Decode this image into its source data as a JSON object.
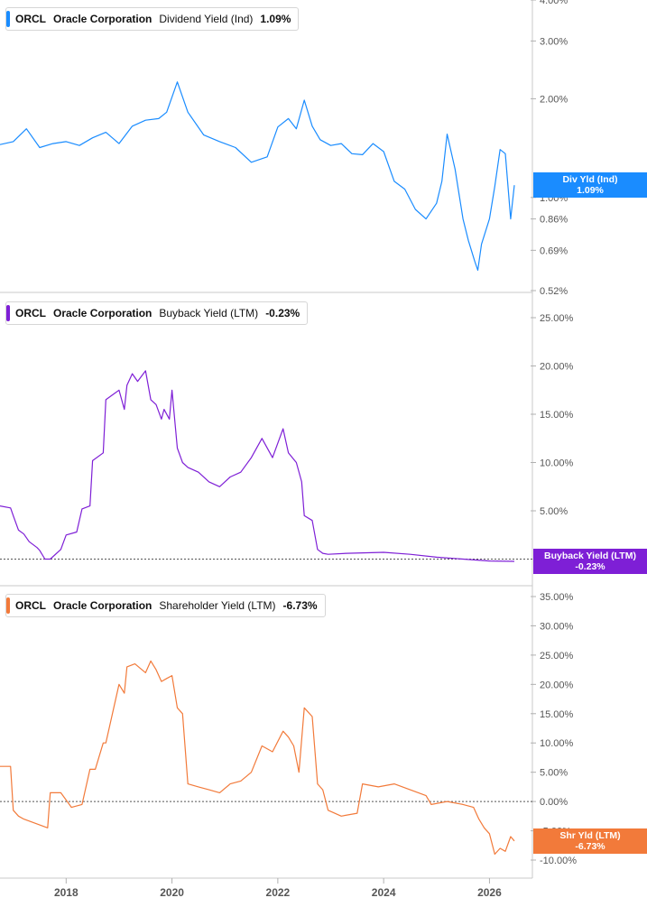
{
  "panels": [
    {
      "ticker": "ORCL",
      "company": "Oracle Corporation",
      "metric": "Dividend Yield (Ind)",
      "value": "1.09%",
      "color": "#1a8cff",
      "tag_label": "Div Yld (Ind)",
      "tag_value": "1.09%"
    },
    {
      "ticker": "ORCL",
      "company": "Oracle Corporation",
      "metric": "Buyback Yield (LTM)",
      "value": "-0.23%",
      "color": "#7e1fd6",
      "tag_label": "Buyback Yield (LTM)",
      "tag_value": "-0.23%"
    },
    {
      "ticker": "ORCL",
      "company": "Oracle Corporation",
      "metric": "Shareholder Yield (LTM)",
      "value": "-6.73%",
      "color": "#f27a3a",
      "tag_label": "Shr Yld (LTM)",
      "tag_value": "-6.73%"
    }
  ],
  "chart_data": [
    {
      "type": "line",
      "title": "ORCL Oracle Corporation Dividend Yield (Ind) 1.09%",
      "scale": "log",
      "ylim": [
        0.52,
        4.0
      ],
      "y_ticks": [
        "4.00%",
        "3.00%",
        "2.00%",
        "1.00%",
        "0.86%",
        "0.69%",
        "0.52%"
      ],
      "y_tick_values": [
        4.0,
        3.0,
        2.0,
        1.0,
        0.86,
        0.69,
        0.52
      ],
      "x_ticks": [
        "2018",
        "2020",
        "2022",
        "2024",
        "2026"
      ],
      "last_value": 1.09,
      "series": [
        {
          "x": [
            2016.75,
            2017.0,
            2017.25,
            2017.5,
            2017.75,
            2018.0,
            2018.25,
            2018.5,
            2018.75,
            2019.0,
            2019.25,
            2019.5,
            2019.75,
            2019.9,
            2020.1,
            2020.3,
            2020.6,
            2020.9,
            2021.2,
            2021.5,
            2021.8,
            2022.0,
            2022.2,
            2022.35,
            2022.5,
            2022.65,
            2022.8,
            2023.0,
            2023.2,
            2023.4,
            2023.6,
            2023.8,
            2024.0,
            2024.2,
            2024.4,
            2024.6,
            2024.8,
            2025.0,
            2025.1,
            2025.2,
            2025.35,
            2025.5,
            2025.6,
            2025.72,
            2025.78,
            2025.85,
            2026.0,
            2026.1,
            2026.2,
            2026.3,
            2026.4,
            2026.47
          ],
          "y": [
            1.45,
            1.48,
            1.62,
            1.42,
            1.46,
            1.48,
            1.44,
            1.52,
            1.58,
            1.46,
            1.65,
            1.72,
            1.74,
            1.82,
            2.25,
            1.82,
            1.55,
            1.48,
            1.42,
            1.28,
            1.33,
            1.64,
            1.74,
            1.62,
            1.98,
            1.65,
            1.5,
            1.44,
            1.46,
            1.36,
            1.35,
            1.46,
            1.38,
            1.12,
            1.06,
            0.92,
            0.86,
            0.96,
            1.12,
            1.56,
            1.22,
            0.86,
            0.74,
            0.64,
            0.6,
            0.72,
            0.86,
            1.08,
            1.4,
            1.36,
            0.86,
            1.09
          ]
        }
      ]
    },
    {
      "type": "line",
      "title": "ORCL Oracle Corporation Buyback Yield (LTM) -0.23%",
      "ylim": [
        -1.0,
        27.0
      ],
      "y_ticks": [
        "25.00%",
        "20.00%",
        "15.00%",
        "10.00%",
        "5.00%"
      ],
      "y_tick_values": [
        25,
        20,
        15,
        10,
        5
      ],
      "x_ticks": [
        "2018",
        "2020",
        "2022",
        "2024",
        "2026"
      ],
      "reference_line": 0,
      "last_value": -0.23,
      "series": [
        {
          "x": [
            2016.75,
            2016.95,
            2017.0,
            2017.1,
            2017.2,
            2017.3,
            2017.45,
            2017.5,
            2017.6,
            2017.7,
            2017.9,
            2018.0,
            2018.2,
            2018.3,
            2018.45,
            2018.5,
            2018.7,
            2018.75,
            2019.0,
            2019.1,
            2019.15,
            2019.25,
            2019.35,
            2019.5,
            2019.6,
            2019.7,
            2019.8,
            2019.85,
            2019.95,
            2020.0,
            2020.1,
            2020.2,
            2020.3,
            2020.5,
            2020.7,
            2020.9,
            2021.1,
            2021.3,
            2021.5,
            2021.7,
            2021.9,
            2022.1,
            2022.2,
            2022.35,
            2022.45,
            2022.5,
            2022.65,
            2022.75,
            2022.85,
            2022.95,
            2023.3,
            2024.0,
            2024.5,
            2025.0,
            2025.5,
            2026.0,
            2026.47
          ],
          "y": [
            5.5,
            5.3,
            4.5,
            3.0,
            2.6,
            1.8,
            1.2,
            0.9,
            0.0,
            0.0,
            1.0,
            2.5,
            2.8,
            5.2,
            5.5,
            10.2,
            11.0,
            16.5,
            17.5,
            15.5,
            18.0,
            19.2,
            18.4,
            19.5,
            16.5,
            16.0,
            14.5,
            15.5,
            14.5,
            17.5,
            11.5,
            10.0,
            9.5,
            9.0,
            8.0,
            7.5,
            8.5,
            9.0,
            10.5,
            12.5,
            10.5,
            13.5,
            11.0,
            10.0,
            8.0,
            4.5,
            4.0,
            1.0,
            0.6,
            0.5,
            0.6,
            0.7,
            0.5,
            0.2,
            0.0,
            -0.2,
            -0.23
          ]
        }
      ]
    },
    {
      "type": "line",
      "title": "ORCL Oracle Corporation Shareholder Yield (LTM) -6.73%",
      "ylim": [
        -11.0,
        37.0
      ],
      "y_ticks": [
        "35.00%",
        "30.00%",
        "25.00%",
        "20.00%",
        "15.00%",
        "10.00%",
        "5.00%",
        "0.00%",
        "-5.00%",
        "-10.00%"
      ],
      "y_tick_values": [
        35,
        30,
        25,
        20,
        15,
        10,
        5,
        0,
        -5,
        -10
      ],
      "x_ticks": [
        "2018",
        "2020",
        "2022",
        "2024",
        "2026"
      ],
      "reference_line": 0,
      "last_value": -6.73,
      "series": [
        {
          "x": [
            2016.75,
            2016.95,
            2017.0,
            2017.1,
            2017.2,
            2017.35,
            2017.5,
            2017.65,
            2017.7,
            2017.9,
            2018.1,
            2018.3,
            2018.45,
            2018.55,
            2018.7,
            2018.75,
            2019.0,
            2019.1,
            2019.15,
            2019.3,
            2019.5,
            2019.6,
            2019.7,
            2019.8,
            2019.9,
            2020.0,
            2020.1,
            2020.2,
            2020.3,
            2020.5,
            2020.7,
            2020.9,
            2021.1,
            2021.3,
            2021.5,
            2021.7,
            2021.9,
            2022.1,
            2022.2,
            2022.3,
            2022.4,
            2022.5,
            2022.65,
            2022.75,
            2022.85,
            2022.95,
            2023.2,
            2023.5,
            2023.6,
            2023.9,
            2024.2,
            2024.5,
            2024.8,
            2024.9,
            2025.2,
            2025.5,
            2025.7,
            2025.8,
            2025.9,
            2026.0,
            2026.1,
            2026.2,
            2026.3,
            2026.4,
            2026.47
          ],
          "y": [
            6.0,
            6.0,
            -1.5,
            -2.5,
            -3.0,
            -3.5,
            -4.0,
            -4.5,
            1.5,
            1.5,
            -1.0,
            -0.5,
            5.5,
            5.5,
            10.0,
            10.0,
            20.0,
            18.5,
            23.0,
            23.5,
            22.0,
            24.0,
            22.5,
            20.5,
            21.0,
            21.5,
            16.0,
            15.0,
            3.0,
            2.5,
            2.0,
            1.5,
            3.0,
            3.5,
            5.0,
            9.5,
            8.5,
            12.0,
            11.0,
            9.5,
            5.0,
            16.0,
            14.5,
            3.0,
            2.0,
            -1.5,
            -2.5,
            -2.0,
            3.0,
            2.5,
            3.0,
            2.0,
            1.0,
            -0.5,
            0.0,
            -0.5,
            -1.0,
            -3.0,
            -4.5,
            -5.5,
            -9.0,
            -8.0,
            -8.5,
            -6.0,
            -6.73
          ]
        }
      ]
    }
  ]
}
